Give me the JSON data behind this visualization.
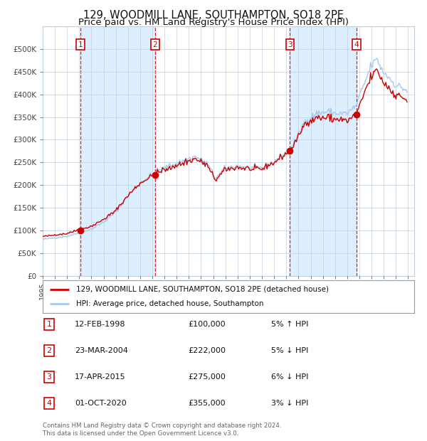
{
  "title": "129, WOODMILL LANE, SOUTHAMPTON, SO18 2PE",
  "subtitle": "Price paid vs. HM Land Registry's House Price Index (HPI)",
  "legend_line1": "129, WOODMILL LANE, SOUTHAMPTON, SO18 2PE (detached house)",
  "legend_line2": "HPI: Average price, detached house, Southampton",
  "footer1": "Contains HM Land Registry data © Crown copyright and database right 2024.",
  "footer2": "This data is licensed under the Open Government Licence v3.0.",
  "transactions": [
    {
      "num": 1,
      "date": "12-FEB-1998",
      "price": 100000,
      "pct": "5%",
      "dir": "↑",
      "label": "1"
    },
    {
      "num": 2,
      "date": "23-MAR-2004",
      "price": 222000,
      "pct": "5%",
      "dir": "↓",
      "label": "2"
    },
    {
      "num": 3,
      "date": "17-APR-2015",
      "price": 275000,
      "pct": "6%",
      "dir": "↓",
      "label": "3"
    },
    {
      "num": 4,
      "date": "01-OCT-2020",
      "price": 355000,
      "pct": "3%",
      "dir": "↓",
      "label": "4"
    }
  ],
  "transaction_dates_decimal": [
    1998.11,
    2004.23,
    2015.3,
    2020.75
  ],
  "transaction_prices": [
    100000,
    222000,
    275000,
    355000
  ],
  "hpi_color": "#a8c8e8",
  "price_color": "#cc0000",
  "dashed_line_color": "#cc0000",
  "shade_color": "#ddeeff",
  "background_color": "#ffffff",
  "grid_color": "#c0d0e0",
  "ylim": [
    0,
    550000
  ],
  "yticks": [
    0,
    50000,
    100000,
    150000,
    200000,
    250000,
    300000,
    350000,
    400000,
    450000,
    500000
  ],
  "xmin": 1995.0,
  "xmax": 2025.5,
  "title_fontsize": 10.5,
  "subtitle_fontsize": 9.5
}
